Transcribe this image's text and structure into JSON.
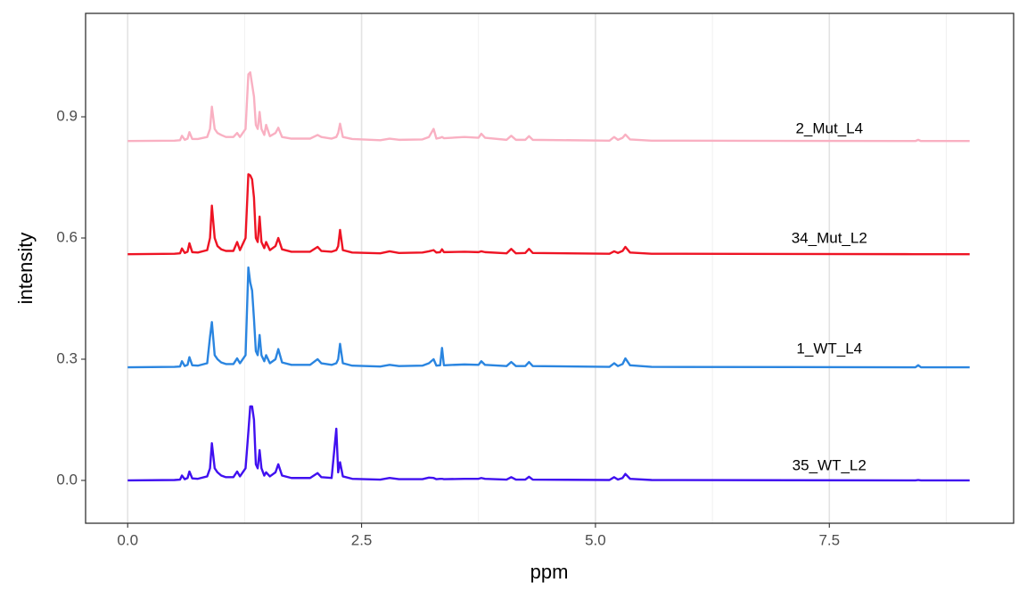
{
  "chart_data": {
    "type": "line",
    "x_label": "ppm",
    "y_label": "intensity",
    "xlim": [
      -0.45,
      9.47
    ],
    "ylim": [
      -0.106,
      1.156
    ],
    "xticks": [
      {
        "value": 0,
        "label": "0.0"
      },
      2.5,
      {
        "value": 5,
        "label": "5.0"
      },
      7.5
    ],
    "xminor": [
      1.25,
      3.75,
      6.25,
      8.75
    ],
    "yticks": [
      {
        "value": 0,
        "label": "0.0"
      },
      0.3,
      0.6,
      0.9
    ],
    "grid": "x",
    "x": [
      0,
      0.5,
      0.56,
      0.58,
      0.61,
      0.64,
      0.66,
      0.69,
      0.75,
      0.85,
      0.88,
      0.9,
      0.93,
      0.96,
      1.0,
      1.05,
      1.13,
      1.17,
      1.2,
      1.26,
      1.29,
      1.31,
      1.33,
      1.35,
      1.37,
      1.39,
      1.41,
      1.43,
      1.46,
      1.48,
      1.52,
      1.58,
      1.61,
      1.65,
      1.75,
      1.95,
      2.03,
      2.07,
      2.18,
      2.23,
      2.25,
      2.27,
      2.3,
      2.4,
      2.7,
      2.8,
      2.9,
      3.15,
      3.22,
      3.27,
      3.3,
      3.34,
      3.36,
      3.38,
      3.6,
      3.75,
      3.78,
      3.82,
      4.05,
      4.1,
      4.15,
      4.25,
      4.29,
      4.33,
      5.15,
      5.2,
      5.24,
      5.29,
      5.32,
      5.37,
      5.6,
      8.42,
      8.45,
      8.48,
      9.0
    ],
    "series": [
      {
        "name": "35_WT_L2",
        "color": "#4010f0",
        "label_at": [
          7.5,
          0.035
        ],
        "values": [
          0,
          0.001,
          0.002,
          0.012,
          0.003,
          0.006,
          0.022,
          0.005,
          0.004,
          0.01,
          0.03,
          0.092,
          0.03,
          0.02,
          0.012,
          0.008,
          0.008,
          0.022,
          0.01,
          0.03,
          0.12,
          0.183,
          0.183,
          0.15,
          0.04,
          0.03,
          0.075,
          0.03,
          0.012,
          0.02,
          0.01,
          0.02,
          0.04,
          0.012,
          0.006,
          0.006,
          0.018,
          0.008,
          0.006,
          0.128,
          0.02,
          0.045,
          0.01,
          0.004,
          0.002,
          0.006,
          0.003,
          0.003,
          0.007,
          0.006,
          0.003,
          0.004,
          0.004,
          0.003,
          0.004,
          0.004,
          0.006,
          0.004,
          0.002,
          0.008,
          0.002,
          0.002,
          0.009,
          0.002,
          0.001,
          0.008,
          0.002,
          0.006,
          0.016,
          0.004,
          0.001,
          0,
          0.001,
          0,
          0
        ]
      },
      {
        "name": "1_WT_L4",
        "color": "#2a85e0",
        "label_at": [
          7.5,
          0.324
        ],
        "values": [
          0.28,
          0.281,
          0.282,
          0.295,
          0.283,
          0.286,
          0.305,
          0.285,
          0.284,
          0.29,
          0.355,
          0.392,
          0.31,
          0.3,
          0.292,
          0.288,
          0.288,
          0.302,
          0.29,
          0.31,
          0.527,
          0.49,
          0.47,
          0.4,
          0.32,
          0.31,
          0.36,
          0.31,
          0.295,
          0.31,
          0.29,
          0.3,
          0.325,
          0.292,
          0.286,
          0.286,
          0.3,
          0.29,
          0.286,
          0.29,
          0.3,
          0.338,
          0.29,
          0.284,
          0.282,
          0.286,
          0.283,
          0.284,
          0.29,
          0.3,
          0.284,
          0.285,
          0.328,
          0.285,
          0.287,
          0.286,
          0.295,
          0.286,
          0.283,
          0.293,
          0.283,
          0.283,
          0.293,
          0.283,
          0.281,
          0.29,
          0.283,
          0.288,
          0.302,
          0.285,
          0.281,
          0.28,
          0.285,
          0.28,
          0.28
        ]
      },
      {
        "name": "34_Mut_L2",
        "color": "#ee1424",
        "label_at": [
          7.5,
          0.598
        ],
        "values": [
          0.56,
          0.561,
          0.562,
          0.574,
          0.563,
          0.566,
          0.587,
          0.565,
          0.564,
          0.57,
          0.6,
          0.68,
          0.6,
          0.58,
          0.572,
          0.568,
          0.568,
          0.59,
          0.57,
          0.6,
          0.758,
          0.755,
          0.745,
          0.7,
          0.6,
          0.59,
          0.653,
          0.59,
          0.575,
          0.59,
          0.57,
          0.58,
          0.6,
          0.572,
          0.566,
          0.566,
          0.578,
          0.568,
          0.566,
          0.57,
          0.58,
          0.62,
          0.57,
          0.564,
          0.562,
          0.567,
          0.563,
          0.564,
          0.567,
          0.57,
          0.564,
          0.565,
          0.572,
          0.565,
          0.566,
          0.565,
          0.567,
          0.565,
          0.562,
          0.573,
          0.562,
          0.563,
          0.573,
          0.563,
          0.561,
          0.567,
          0.563,
          0.568,
          0.578,
          0.564,
          0.561,
          0.56,
          0.56,
          0.56,
          0.56
        ]
      },
      {
        "name": "2_Mut_L4",
        "color": "#f9b0c2",
        "label_at": [
          7.5,
          0.869
        ],
        "values": [
          0.84,
          0.841,
          0.842,
          0.853,
          0.843,
          0.846,
          0.862,
          0.845,
          0.845,
          0.85,
          0.87,
          0.925,
          0.87,
          0.86,
          0.855,
          0.85,
          0.85,
          0.86,
          0.85,
          0.87,
          1.005,
          1.01,
          0.98,
          0.95,
          0.88,
          0.87,
          0.912,
          0.87,
          0.855,
          0.88,
          0.852,
          0.86,
          0.873,
          0.85,
          0.846,
          0.846,
          0.855,
          0.85,
          0.846,
          0.85,
          0.86,
          0.883,
          0.85,
          0.845,
          0.842,
          0.846,
          0.843,
          0.844,
          0.85,
          0.87,
          0.846,
          0.848,
          0.85,
          0.847,
          0.85,
          0.848,
          0.858,
          0.848,
          0.843,
          0.853,
          0.843,
          0.843,
          0.852,
          0.843,
          0.841,
          0.85,
          0.843,
          0.848,
          0.856,
          0.844,
          0.841,
          0.84,
          0.843,
          0.84,
          0.84
        ]
      }
    ]
  }
}
